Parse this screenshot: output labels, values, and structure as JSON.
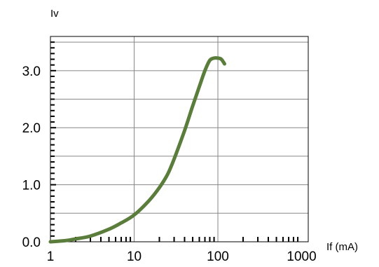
{
  "chart_data": {
    "type": "line",
    "xlabel": "If (mA)",
    "ylabel": "Iv",
    "xscale": "log",
    "xlim": [
      1,
      1200
    ],
    "ylim": [
      0,
      3.6
    ],
    "xticks": [
      1,
      10,
      100,
      1000
    ],
    "xtick_labels": [
      "1",
      "10",
      "100",
      "1000"
    ],
    "yticks": [
      0,
      1,
      2,
      3
    ],
    "ytick_labels": [
      "0.0",
      "1.0",
      "2.0",
      "3.0"
    ],
    "grid": true,
    "series": [
      {
        "color": "#5a7d3c",
        "x": [
          1,
          1.5,
          2,
          3,
          5,
          7,
          10,
          15,
          20,
          25,
          30,
          40,
          50,
          60,
          70,
          80,
          90,
          100,
          110,
          120
        ],
        "y": [
          0,
          0.02,
          0.05,
          0.1,
          0.22,
          0.33,
          0.47,
          0.72,
          0.95,
          1.18,
          1.45,
          1.95,
          2.38,
          2.72,
          3.0,
          3.18,
          3.22,
          3.22,
          3.2,
          3.12
        ]
      }
    ]
  }
}
